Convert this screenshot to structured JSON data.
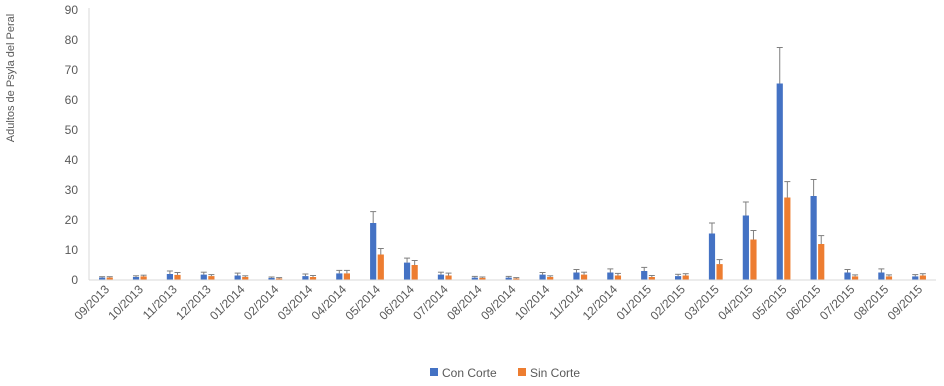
{
  "chart_data": {
    "type": "bar",
    "ylabel": "Adultos de Psyla del Peral",
    "ylim": [
      0,
      90
    ],
    "yticks": [
      0,
      10,
      20,
      30,
      40,
      50,
      60,
      70,
      80,
      90
    ],
    "grid": false,
    "legend_position": "bottom",
    "error_bars": true,
    "categories": [
      "09/2013",
      "10/2013",
      "11/2013",
      "12/2013",
      "01/2014",
      "02/2014",
      "03/2014",
      "04/2014",
      "05/2014",
      "06/2014",
      "07/2014",
      "08/2014",
      "09/2014",
      "10/2014",
      "11/2014",
      "12/2014",
      "01/2015",
      "02/2015",
      "03/2015",
      "04/2015",
      "05/2015",
      "06/2015",
      "07/2015",
      "08/2015",
      "09/2015"
    ],
    "series": [
      {
        "name": "Con Corte",
        "color": "#4472C4",
        "values": [
          0.8,
          1.0,
          2.0,
          1.8,
          1.5,
          0.7,
          1.3,
          2.2,
          19.0,
          5.8,
          1.8,
          0.8,
          0.8,
          1.8,
          2.5,
          2.5,
          3.0,
          1.3,
          15.5,
          21.5,
          65.5,
          28.0,
          2.5,
          2.5,
          1.2
        ],
        "errors": [
          0.3,
          0.4,
          1.0,
          0.8,
          0.8,
          0.3,
          0.7,
          1.0,
          3.8,
          1.5,
          0.8,
          0.4,
          0.4,
          0.7,
          1.0,
          1.2,
          1.2,
          0.6,
          3.5,
          4.5,
          12.0,
          5.5,
          1.0,
          1.2,
          0.6
        ]
      },
      {
        "name": "Sin Corte",
        "color": "#ED7D31",
        "values": [
          0.8,
          1.2,
          1.7,
          1.3,
          1.0,
          0.5,
          1.0,
          2.2,
          8.5,
          5.0,
          1.5,
          0.7,
          0.5,
          1.0,
          1.8,
          1.5,
          1.0,
          1.5,
          5.3,
          13.5,
          27.5,
          12.0,
          1.2,
          1.2,
          1.5
        ],
        "errors": [
          0.3,
          0.4,
          0.8,
          0.5,
          0.4,
          0.3,
          0.5,
          1.0,
          2.0,
          1.5,
          0.8,
          0.3,
          0.3,
          0.4,
          0.8,
          0.7,
          0.5,
          0.6,
          1.5,
          3.0,
          5.3,
          2.8,
          0.5,
          0.5,
          0.6
        ]
      }
    ]
  }
}
